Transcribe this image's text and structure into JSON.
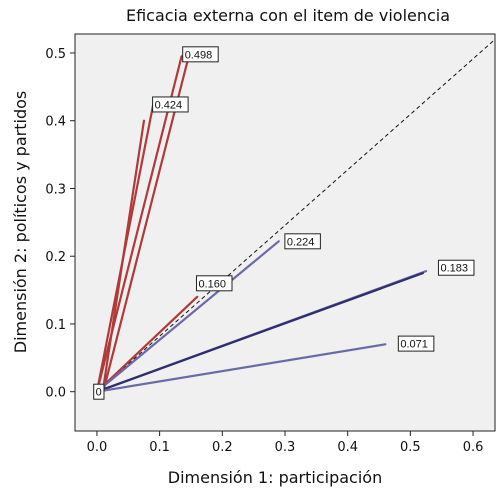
{
  "chart_data": {
    "type": "line",
    "title": "Eficacia externa con el item de violencia",
    "xlabel": "Dimensión 1: participación",
    "ylabel": "Dimensión 2: políticos y partidos",
    "xlim": [
      -0.035,
      0.635
    ],
    "ylim": [
      -0.058,
      0.528
    ],
    "xticks": [
      "0.0",
      "0.1",
      "0.2",
      "0.3",
      "0.4",
      "0.5",
      "0.6"
    ],
    "yticks": [
      "0.0",
      "0.1",
      "0.2",
      "0.3",
      "0.4",
      "0.5"
    ],
    "grid": false,
    "background": "#f0f0f0",
    "reference_line": {
      "x": [
        0,
        0.635
      ],
      "y": [
        0,
        0.52
      ],
      "style": "dashed",
      "color": "#111111"
    },
    "series": [
      {
        "color": "#b03a3a",
        "x": [
          0,
          0.135
        ],
        "y": [
          0,
          0.495
        ]
      },
      {
        "color": "#b03a3a",
        "x": [
          0.01,
          0.145
        ],
        "y": [
          0,
          0.49
        ]
      },
      {
        "color": "#b03a3a",
        "x": [
          0,
          0.09
        ],
        "y": [
          0,
          0.425
        ]
      },
      {
        "color": "#b03a3a",
        "x": [
          0.01,
          0.075
        ],
        "y": [
          0.005,
          0.4
        ]
      },
      {
        "color": "#b03a3a",
        "x": [
          0,
          0.16
        ],
        "y": [
          0,
          0.14
        ]
      },
      {
        "color": "#6a6aaa",
        "x": [
          0,
          0.29
        ],
        "y": [
          0,
          0.222
        ]
      },
      {
        "color": "#6a6aaa",
        "x": [
          0,
          0.525
        ],
        "y": [
          0,
          0.178
        ]
      },
      {
        "color": "#2e2e6e",
        "x": [
          0,
          0.52
        ],
        "y": [
          0,
          0.175
        ]
      },
      {
        "color": "#6a6aaa",
        "x": [
          0,
          0.46
        ],
        "y": [
          0,
          0.07
        ]
      }
    ],
    "labels": [
      {
        "text": "0.498",
        "x": 0.14,
        "y": 0.498
      },
      {
        "text": "0.424",
        "x": 0.092,
        "y": 0.424
      },
      {
        "text": "0.224",
        "x": 0.303,
        "y": 0.222
      },
      {
        "text": "0.160",
        "x": 0.162,
        "y": 0.16
      },
      {
        "text": "0.183",
        "x": 0.548,
        "y": 0.183
      },
      {
        "text": "0.071",
        "x": 0.484,
        "y": 0.071
      },
      {
        "text": "0",
        "x": -0.002,
        "y": 0.0
      }
    ]
  }
}
